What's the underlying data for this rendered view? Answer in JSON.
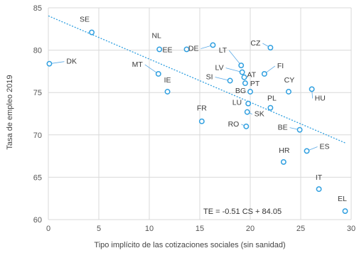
{
  "chart_data": {
    "type": "scatter",
    "title": "",
    "xlabel": "Tipo implícito de las cotizaciones sociales (sin sanidad)",
    "ylabel": "Tasa de empleo 2019",
    "xlim": [
      0,
      30
    ],
    "ylim": [
      60,
      85
    ],
    "x_ticks": [
      0,
      5,
      10,
      15,
      20,
      25,
      30
    ],
    "y_ticks": [
      60,
      65,
      70,
      75,
      80,
      85
    ],
    "grid": true,
    "accent_color": "#2f9fe0",
    "trendline": {
      "equation_label": "TE = -0.51 CS + 84.05",
      "slope": -0.51,
      "intercept": 84.05,
      "x_range": [
        0,
        29.5
      ]
    },
    "points": [
      {
        "label": "SE",
        "x": 4.3,
        "y": 82.1
      },
      {
        "label": "DK",
        "x": 0.1,
        "y": 78.4
      },
      {
        "label": "NL",
        "x": 11.0,
        "y": 80.1
      },
      {
        "label": "EE",
        "x": 13.7,
        "y": 80.1
      },
      {
        "label": "DE",
        "x": 16.3,
        "y": 80.6
      },
      {
        "label": "MT",
        "x": 10.9,
        "y": 77.2
      },
      {
        "label": "IE",
        "x": 11.8,
        "y": 75.1
      },
      {
        "label": "LT",
        "x": 19.1,
        "y": 78.2
      },
      {
        "label": "CZ",
        "x": 22.0,
        "y": 80.3
      },
      {
        "label": "LV",
        "x": 19.2,
        "y": 77.4
      },
      {
        "label": "AT",
        "x": 19.4,
        "y": 76.8
      },
      {
        "label": "FI",
        "x": 21.4,
        "y": 77.2
      },
      {
        "label": "SI",
        "x": 18.0,
        "y": 76.4
      },
      {
        "label": "PT",
        "x": 19.5,
        "y": 76.1
      },
      {
        "label": "BG",
        "x": 20.0,
        "y": 75.1
      },
      {
        "label": "CY",
        "x": 23.8,
        "y": 75.1
      },
      {
        "label": "HU",
        "x": 26.1,
        "y": 75.4
      },
      {
        "label": "PL",
        "x": 22.0,
        "y": 73.2
      },
      {
        "label": "LU",
        "x": 19.8,
        "y": 73.7
      },
      {
        "label": "FR",
        "x": 15.2,
        "y": 71.6
      },
      {
        "label": "SK",
        "x": 19.7,
        "y": 72.7
      },
      {
        "label": "RO",
        "x": 19.6,
        "y": 71.0
      },
      {
        "label": "BE",
        "x": 24.9,
        "y": 70.6
      },
      {
        "label": "HR",
        "x": 23.3,
        "y": 66.8
      },
      {
        "label": "ES",
        "x": 25.6,
        "y": 68.1
      },
      {
        "label": "IT",
        "x": 26.8,
        "y": 63.6
      },
      {
        "label": "EL",
        "x": 29.4,
        "y": 61.0
      }
    ]
  }
}
